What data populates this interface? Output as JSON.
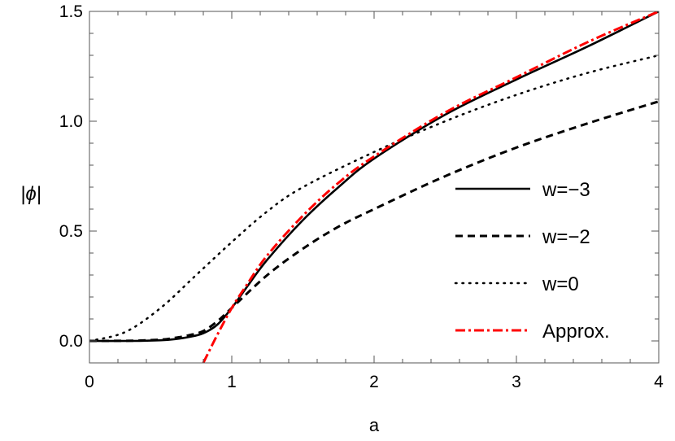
{
  "chart_data": {
    "type": "line",
    "title": "",
    "xlabel": "a",
    "ylabel": "|ϕ|",
    "xlim": [
      0,
      4
    ],
    "ylim": [
      -0.1,
      1.5
    ],
    "xticks": [
      "0",
      "1",
      "2",
      "3",
      "4"
    ],
    "yticks": [
      "0.0",
      "0.5",
      "1.0",
      "1.5"
    ],
    "grid": false,
    "legend_position": "right",
    "series": [
      {
        "name": "w=−3",
        "color": "#000000",
        "style": "solid",
        "x": [
          0,
          0.3,
          0.5,
          0.6,
          0.7,
          0.8,
          0.9,
          1.0,
          1.1,
          1.25,
          1.5,
          1.75,
          2.0,
          2.5,
          3.0,
          3.5,
          4.0
        ],
        "y": [
          0,
          0,
          0.003,
          0.008,
          0.018,
          0.035,
          0.075,
          0.15,
          0.24,
          0.37,
          0.55,
          0.7,
          0.83,
          1.03,
          1.19,
          1.34,
          1.5
        ]
      },
      {
        "name": "w=−2",
        "color": "#000000",
        "style": "dashed",
        "x": [
          0,
          0.3,
          0.5,
          0.6,
          0.7,
          0.8,
          0.9,
          1.0,
          1.25,
          1.5,
          1.75,
          2.0,
          2.5,
          3.0,
          3.5,
          4.0
        ],
        "y": [
          0,
          0.001,
          0.006,
          0.014,
          0.026,
          0.045,
          0.09,
          0.15,
          0.3,
          0.42,
          0.52,
          0.6,
          0.75,
          0.88,
          0.99,
          1.09
        ]
      },
      {
        "name": "w=0",
        "color": "#000000",
        "style": "dotted",
        "x": [
          0,
          0.25,
          0.5,
          0.75,
          1.0,
          1.25,
          1.5,
          2.0,
          2.5,
          3.0,
          3.5,
          4.0
        ],
        "y": [
          0,
          0.04,
          0.15,
          0.3,
          0.45,
          0.59,
          0.7,
          0.86,
          1.0,
          1.12,
          1.22,
          1.3
        ]
      },
      {
        "name": "Approx.",
        "color": "#ff0000",
        "style": "dashdot",
        "x": [
          0.8,
          0.9,
          1.0,
          1.1,
          1.25,
          1.5,
          1.75,
          2.0,
          2.5,
          3.0,
          3.5,
          4.0
        ],
        "y": [
          -0.1,
          0.03,
          0.15,
          0.25,
          0.39,
          0.57,
          0.72,
          0.84,
          1.04,
          1.2,
          1.36,
          1.5
        ]
      }
    ]
  }
}
